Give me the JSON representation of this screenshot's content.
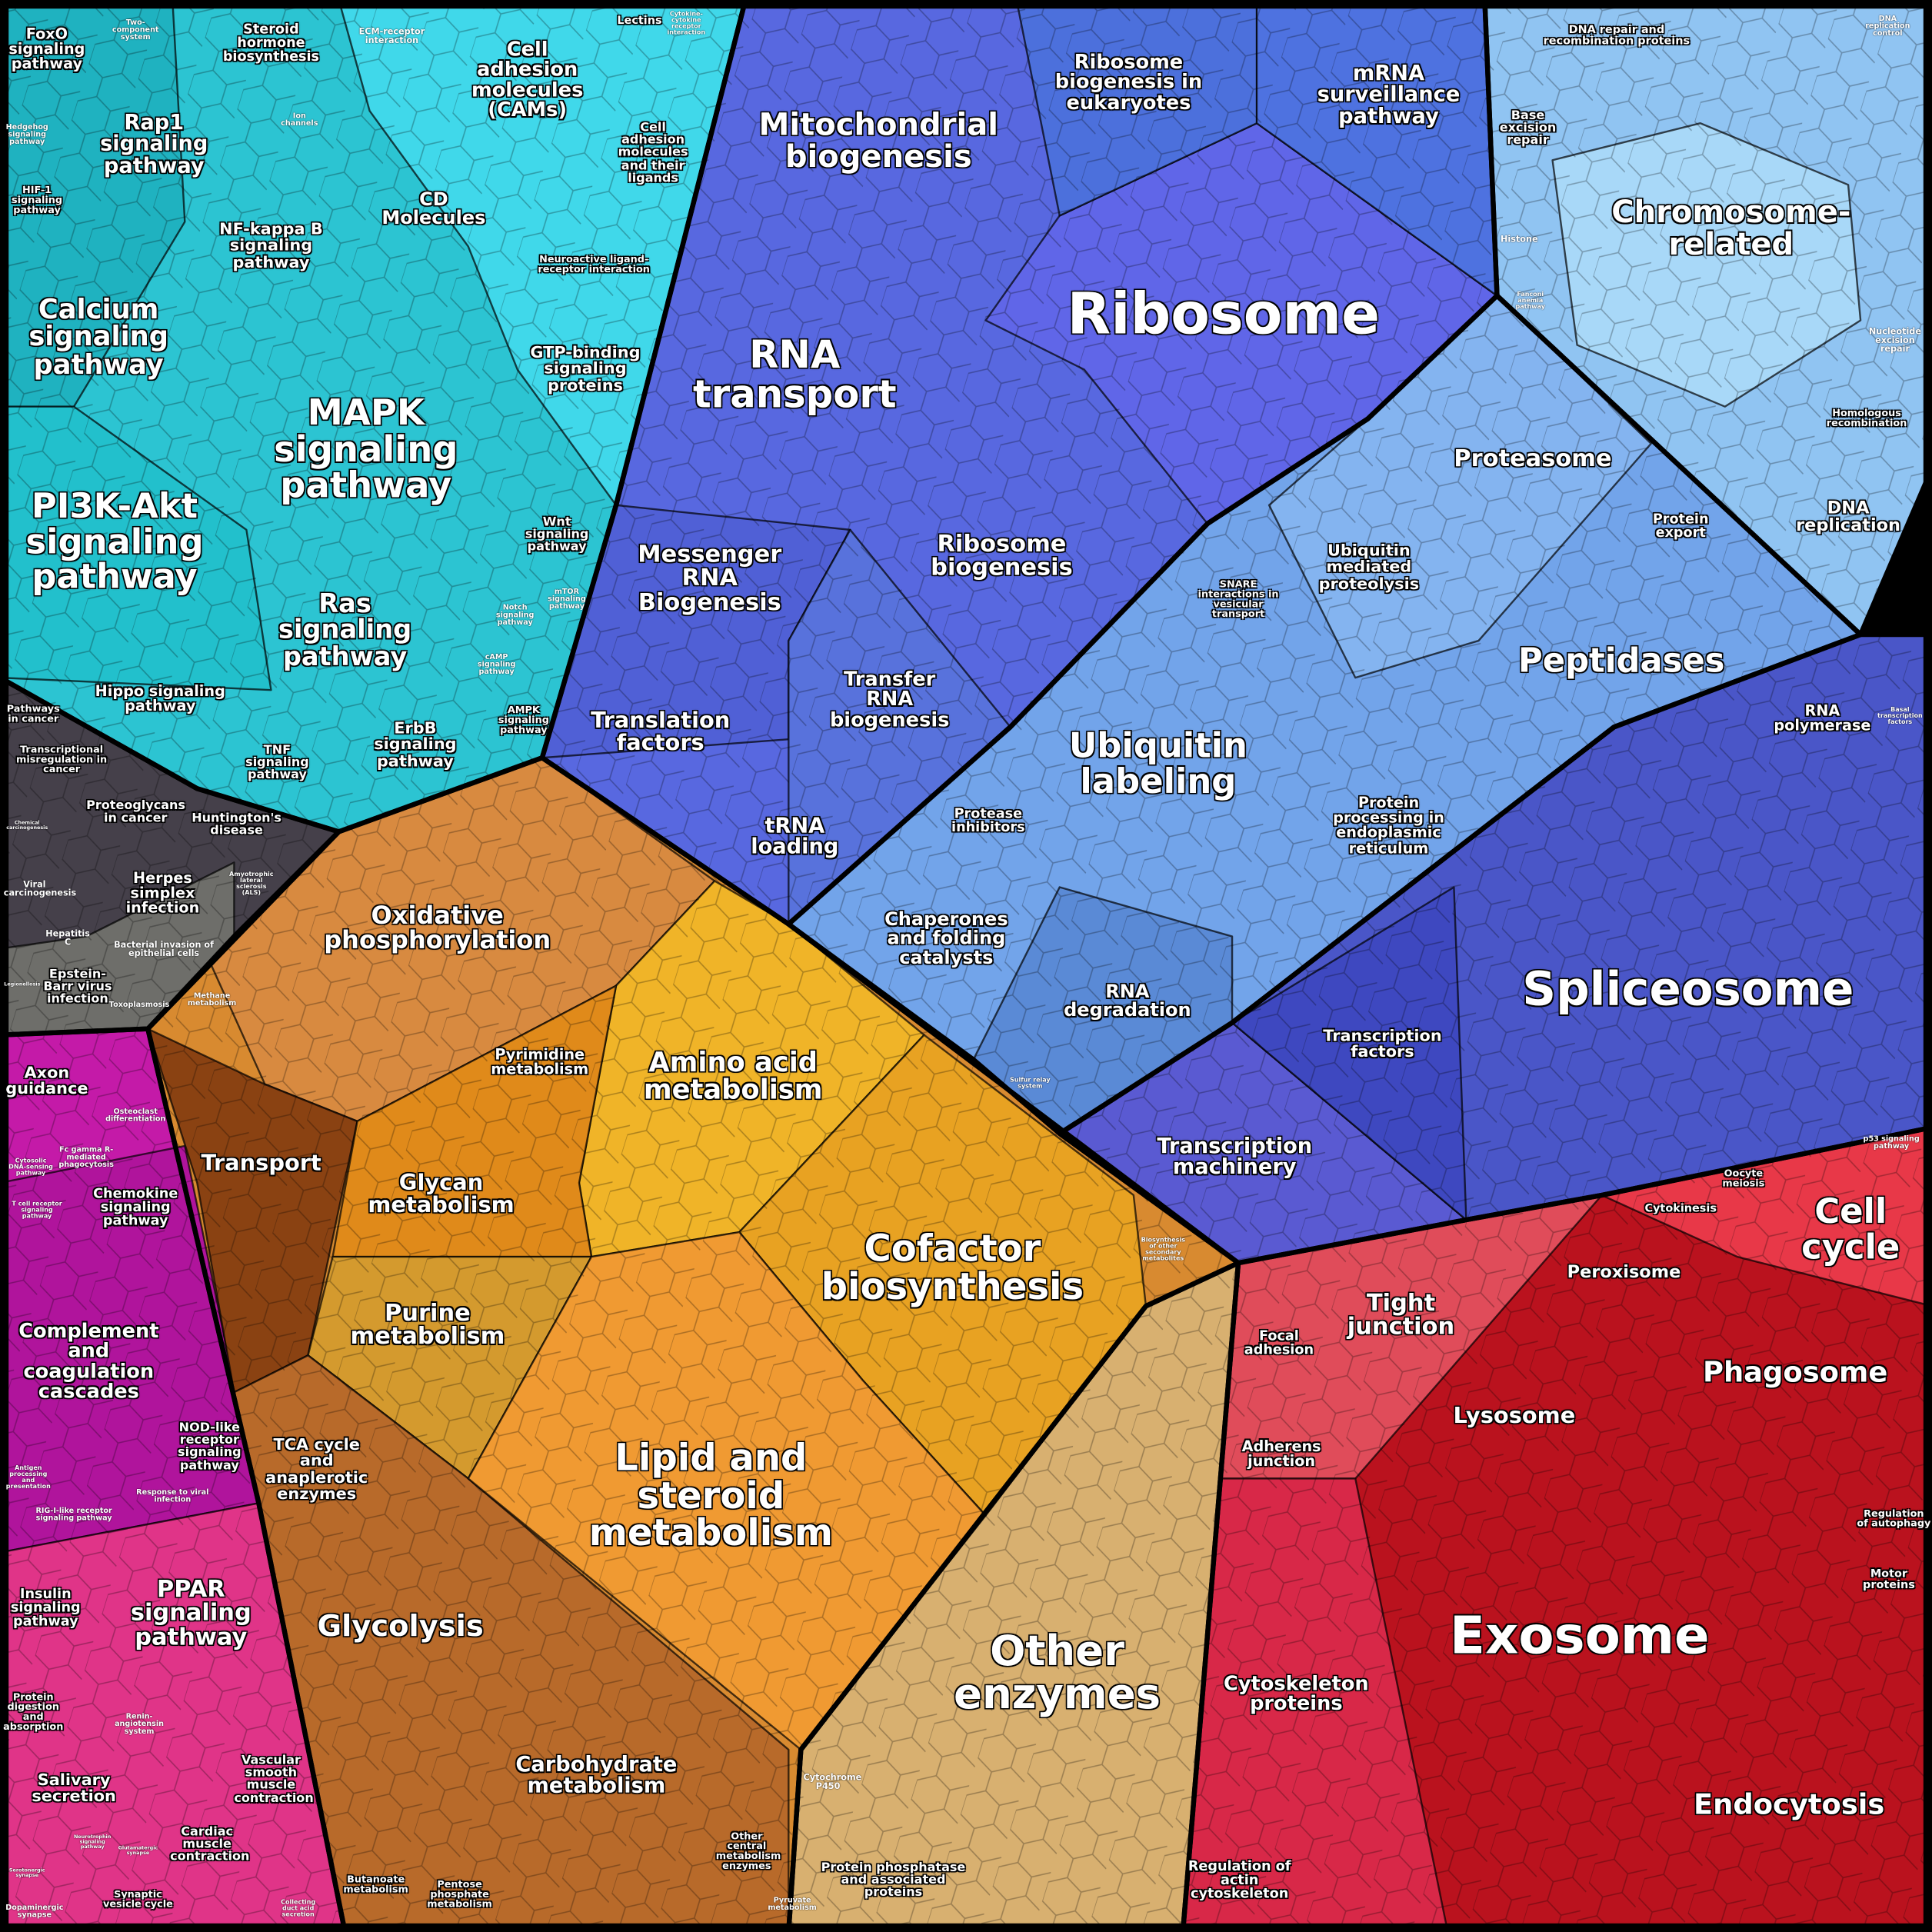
{
  "regions": [
    {
      "labels": [
        "FoxO signaling pathway",
        "Two-component system",
        "Steroid hormone biosynthesis",
        "ECM-receptor interaction",
        "Cell adhesion molecules (CAMs)",
        "Lectins",
        "Cytokine-cytokine receptor interaction",
        "Rap1 signaling pathway",
        "Hedgehog signaling pathway",
        "Ion channels",
        "Cell adhesion molecules and their ligands",
        "HIF-1 signaling pathway",
        "CD Molecules",
        "NF-kappa B signaling pathway",
        "Neuroactive ligand-receptor interaction",
        "Calcium signaling pathway",
        "GTP-binding signaling proteins",
        "MAPK signaling pathway",
        "PI3K-Akt signaling pathway",
        "Wnt signaling pathway",
        "Ras signaling pathway",
        "Notch signaling pathway",
        "mTOR signaling pathway",
        "cAMP signaling pathway",
        "Hippo signaling pathway",
        "AMPK signaling pathway",
        "TNF signaling pathway",
        "ErbB signaling pathway"
      ]
    },
    {
      "labels": [
        "Pathways in cancer",
        "Transcriptional misregulation in cancer",
        "Proteoglycans in cancer",
        "Huntington's disease",
        "Chemical carcinogenesis",
        "Viral carcinogenesis",
        "Herpes simplex infection",
        "Amyotrophic lateral sclerosis (ALS)",
        "Hepatitis C",
        "Bacterial invasion of epithelial cells",
        "Epstein-Barr virus infection",
        "Toxoplasmosis",
        "Legionellosis"
      ]
    },
    {
      "labels": [
        "Axon guidance",
        "Osteoclast differentiation",
        "Fc gamma R-mediated phagocytosis",
        "Cytosolic DNA-sensing pathway",
        "Chemokine signaling pathway",
        "T cell receptor signaling pathway",
        "Complement and coagulation cascades",
        "NOD-like receptor signaling pathway",
        "Antigen processing and presentation",
        "Response to viral infection",
        "RIG-I-like receptor signaling pathway",
        "Insulin signaling pathway",
        "PPAR signaling pathway",
        "Protein digestion and absorption",
        "Renin-angiotensin system",
        "Salivary secretion",
        "Vascular smooth muscle contraction",
        "Cardiac muscle contraction",
        "Neurotrophin signaling pathway",
        "Glutamatergic synapse",
        "Serotonergic synapse",
        "Synaptic vesicle cycle",
        "Dopaminergic synapse",
        "Collecting duct acid secretion"
      ]
    },
    {
      "labels": [
        "Oxidative phosphorylation",
        "Methane metabolism",
        "Pyrimidine metabolism",
        "Amino acid metabolism",
        "Transport",
        "Glycan metabolism",
        "Purine metabolism",
        "Cofactor biosynthesis",
        "Biosynthesis of other secondary metabolites",
        "TCA cycle and anaplerotic enzymes",
        "Lipid and steroid metabolism",
        "Glycolysis",
        "Carbohydrate metabolism",
        "Other central metabolism enzymes",
        "Butanoate metabolism",
        "Pentose phosphate metabolism",
        "Pyruvate metabolism"
      ]
    },
    {
      "labels": [
        "Other enzymes",
        "Cytochrome P450",
        "Protein phosphatase and associated proteins"
      ]
    },
    {
      "labels": [
        "Mitochondrial biogenesis",
        "Ribosome biogenesis in eukaryotes",
        "mRNA surveillance pathway",
        "Ribosome",
        "RNA transport",
        "Messenger RNA Biogenesis",
        "Ribosome biogenesis",
        "Transfer RNA biogenesis",
        "Translation factors",
        "tRNA loading"
      ]
    },
    {
      "labels": [
        "DNA repair and recombination proteins",
        "DNA replication control",
        "Base excision repair",
        "Chromosome-related",
        "Histone",
        "Fanconi anemia pathway",
        "Nucleotide excision repair",
        "Homologous recombination",
        "DNA replication"
      ]
    },
    {
      "labels": [
        "Proteasome",
        "Protein export",
        "SNARE interactions in vesicular transport",
        "Ubiquitin mediated proteolysis",
        "Peptidases",
        "Ubiquitin labeling",
        "Protease inhibitors",
        "Protein processing in endoplasmic reticulum",
        "Chaperones and folding catalysts",
        "RNA degradation",
        "Sulfur relay system"
      ]
    },
    {
      "labels": [
        "RNA polymerase",
        "Basal transcription factors",
        "Spliceosome",
        "Transcription factors",
        "Transcription machinery"
      ]
    },
    {
      "labels": [
        "p53 signaling pathway",
        "Oocyte meiosis",
        "Cytokinesis",
        "Cell cycle",
        "Peroxisome",
        "Tight junction",
        "Focal adhesion",
        "Phagosome",
        "Lysosome",
        "Adherens junction",
        "Regulation of autophagy",
        "Motor proteins",
        "Exosome",
        "Cytoskeleton proteins",
        "Endocytosis",
        "Regulation of actin cytoskeleton"
      ]
    }
  ]
}
